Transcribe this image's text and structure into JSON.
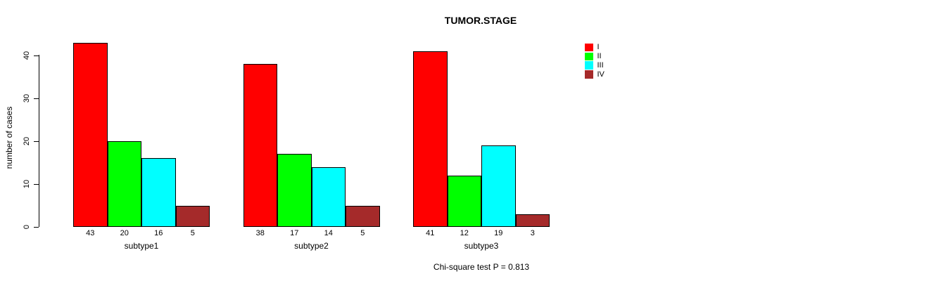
{
  "chart_data": {
    "type": "bar",
    "title": "TUMOR.STAGE",
    "xlabel": "",
    "ylabel": "number of cases",
    "categories": [
      "subtype1",
      "subtype2",
      "subtype3"
    ],
    "series": [
      {
        "name": "I",
        "color": "#FF0000",
        "values": [
          43,
          38,
          41
        ]
      },
      {
        "name": "II",
        "color": "#00FF00",
        "values": [
          20,
          17,
          12
        ]
      },
      {
        "name": "III",
        "color": "#00FFFF",
        "values": [
          16,
          14,
          19
        ]
      },
      {
        "name": "IV",
        "color": "#A52A2A",
        "values": [
          5,
          5,
          3
        ]
      }
    ],
    "yticks": [
      0,
      10,
      20,
      30,
      40
    ],
    "ylim": [
      0,
      43
    ],
    "bar_value_labels": true,
    "grid": false,
    "legend_position": "top-right",
    "legend_entries": [
      "I",
      "II",
      "III",
      "IV"
    ],
    "annotation": "Chi-square test P = 0.813"
  }
}
